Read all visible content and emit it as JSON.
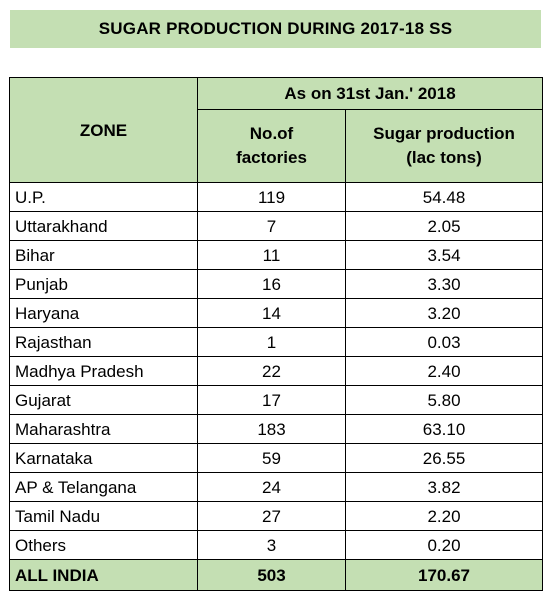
{
  "title": "SUGAR PRODUCTION DURING 2017-18 SS",
  "header": {
    "date_label": "As on 31st Jan.' 2018",
    "zone": "ZONE",
    "factories_line1": "No.of",
    "factories_line2": "factories",
    "production_line1": "Sugar production",
    "production_line2": "(lac tons)"
  },
  "rows": [
    {
      "zone": "U.P.",
      "factories": "119",
      "production": "54.48"
    },
    {
      "zone": "Uttarakhand",
      "factories": "7",
      "production": "2.05"
    },
    {
      "zone": "Bihar",
      "factories": "11",
      "production": "3.54"
    },
    {
      "zone": "Punjab",
      "factories": "16",
      "production": "3.30"
    },
    {
      "zone": "Haryana",
      "factories": "14",
      "production": "3.20"
    },
    {
      "zone": "Rajasthan",
      "factories": "1",
      "production": "0.03"
    },
    {
      "zone": "Madhya Pradesh",
      "factories": "22",
      "production": "2.40"
    },
    {
      "zone": "Gujarat",
      "factories": "17",
      "production": "5.80"
    },
    {
      "zone": "Maharashtra",
      "factories": "183",
      "production": "63.10"
    },
    {
      "zone": "Karnataka",
      "factories": "59",
      "production": "26.55"
    },
    {
      "zone": "AP & Telangana",
      "factories": "24",
      "production": "3.82"
    },
    {
      "zone": "Tamil Nadu",
      "factories": "27",
      "production": "2.20"
    },
    {
      "zone": "Others",
      "factories": "3",
      "production": "0.20"
    }
  ],
  "total": {
    "zone": "ALL INDIA",
    "factories": "503",
    "production": "170.67"
  },
  "colors": {
    "header_fill": "#c4dfb3",
    "border": "#000000"
  }
}
